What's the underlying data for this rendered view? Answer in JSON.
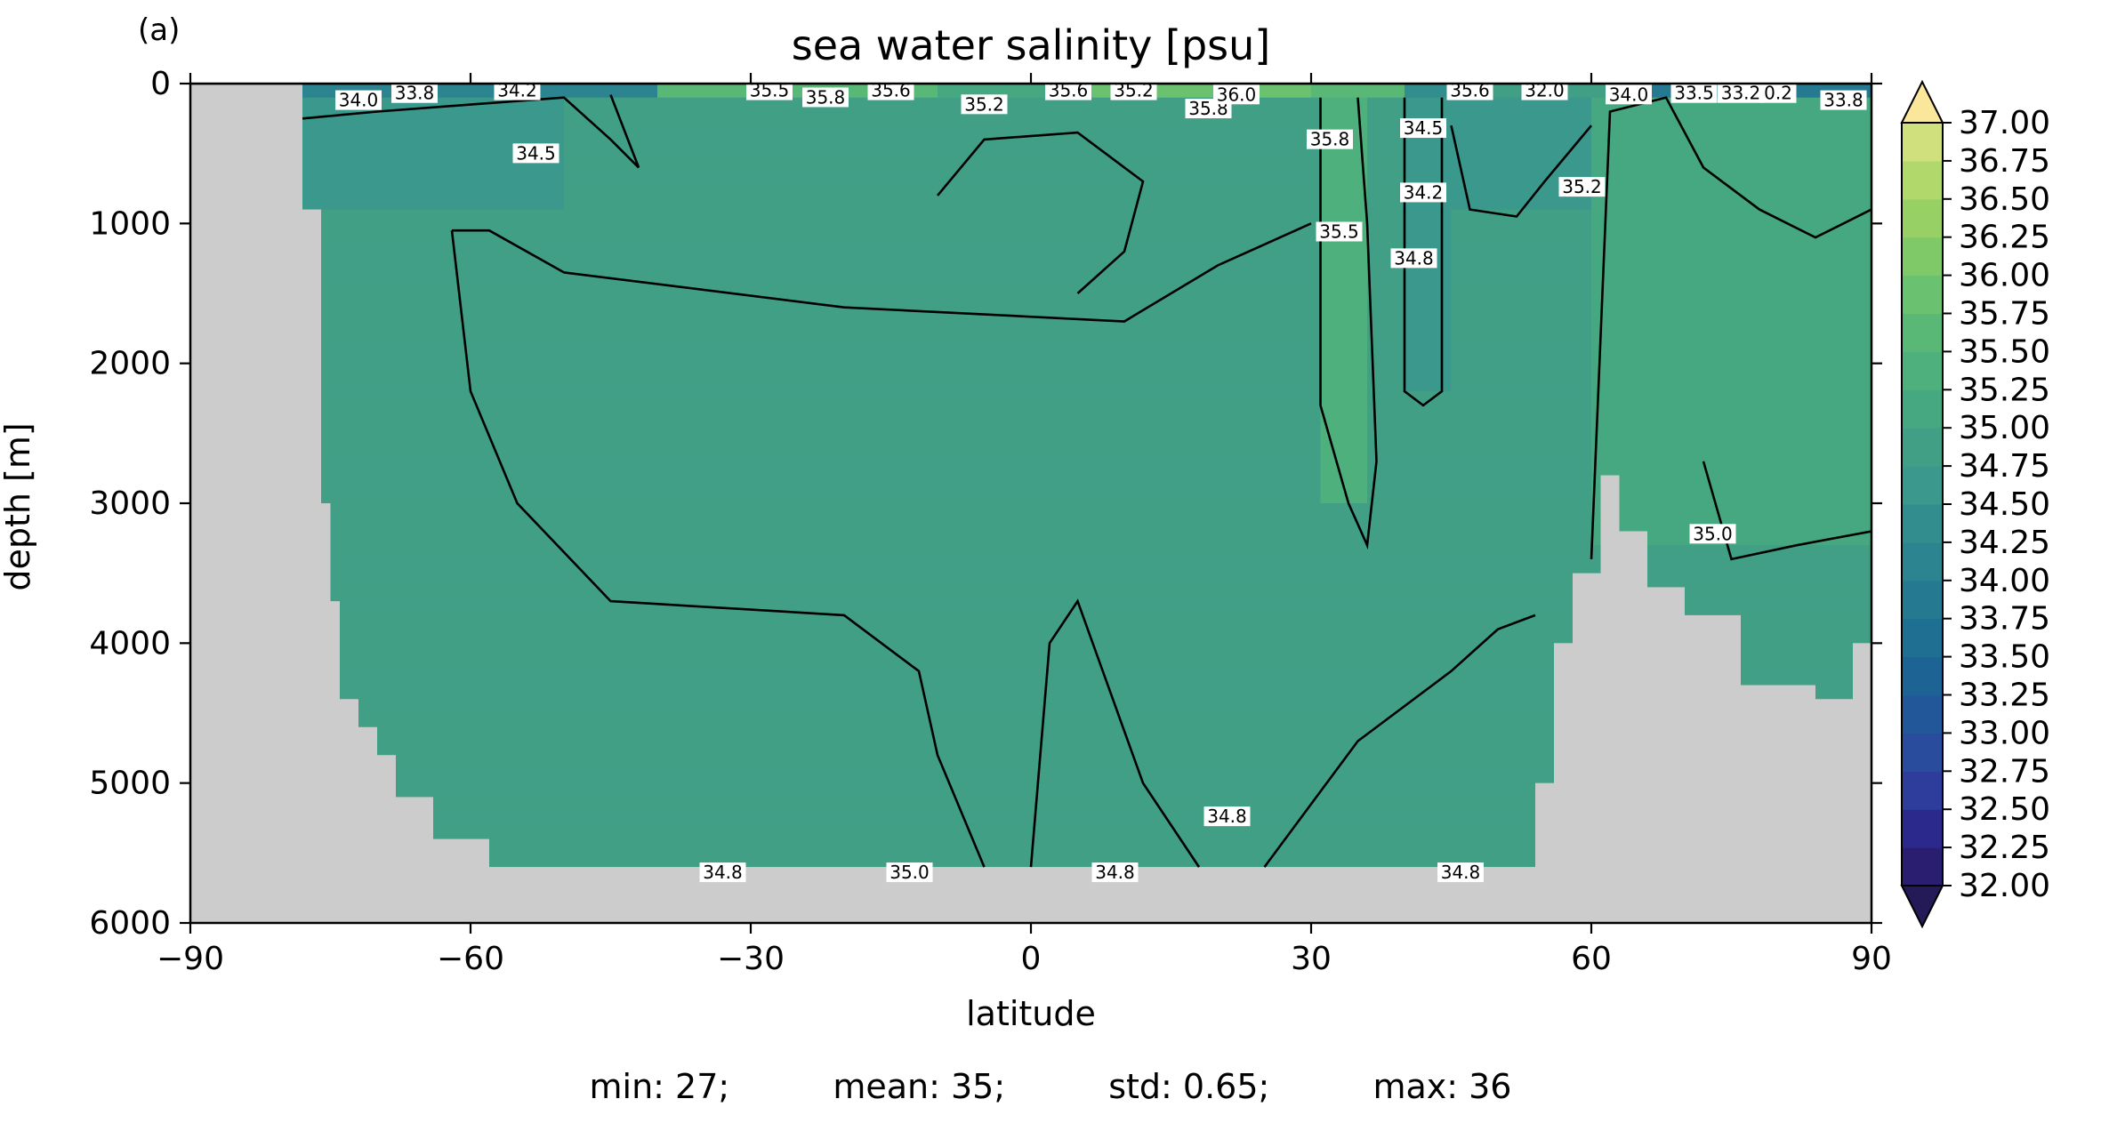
{
  "panel_label": "(a)",
  "stats": {
    "min": "min: 27;",
    "mean": "mean: 35;",
    "std": "std: 0.65;",
    "max": "max: 36"
  },
  "chart_data": {
    "type": "heatmap",
    "subtype": "filled-contour-depth-section",
    "title": "sea water salinity [psu]",
    "xlabel": "latitude",
    "ylabel": "depth [m]",
    "xlim": [
      -90,
      90
    ],
    "ylim": [
      6000,
      0
    ],
    "x_ticks": [
      -90,
      -60,
      -30,
      0,
      30,
      60,
      90
    ],
    "x_tick_labels": [
      "−90",
      "−60",
      "−30",
      "0",
      "30",
      "60",
      "90"
    ],
    "y_ticks": [
      0,
      1000,
      2000,
      3000,
      4000,
      5000,
      6000
    ],
    "y_tick_labels": [
      "0",
      "1000",
      "2000",
      "3000",
      "4000",
      "5000",
      "6000"
    ],
    "colorbar": {
      "levels": [
        32.0,
        32.25,
        32.5,
        32.75,
        33.0,
        33.25,
        33.5,
        33.75,
        34.0,
        34.25,
        34.5,
        34.75,
        35.0,
        35.25,
        35.5,
        35.75,
        36.0,
        36.25,
        36.5,
        36.75,
        37.0
      ],
      "tick_labels": [
        "32.00",
        "32.25",
        "32.50",
        "32.75",
        "33.00",
        "33.25",
        "33.50",
        "33.75",
        "34.00",
        "34.25",
        "34.50",
        "34.75",
        "35.00",
        "35.25",
        "35.50",
        "35.75",
        "36.00",
        "36.25",
        "36.50",
        "36.75",
        "37.00"
      ],
      "extend": "both",
      "colors": [
        "#2a1e70",
        "#2b2a8c",
        "#2e3c9c",
        "#2a4c9c",
        "#22589a",
        "#1d6494",
        "#1f6f92",
        "#257990",
        "#2c8490",
        "#328e8e",
        "#3a988c",
        "#419f86",
        "#46a880",
        "#4eb07c",
        "#5ab876",
        "#6ac270",
        "#80c968",
        "#97d064",
        "#b1d86a",
        "#cfe07c",
        "#ece58c"
      ],
      "under_color": "#241a58",
      "over_color": "#fbe79c"
    },
    "land_mask_color": "#cccccc",
    "deep_ocean_floor_m": 5600,
    "contour_labels": [
      {
        "text": "34.0",
        "lat": -72,
        "depth": 80
      },
      {
        "text": "33.8",
        "lat": -66,
        "depth": 30
      },
      {
        "text": "34.2",
        "lat": -55,
        "depth": 10
      },
      {
        "text": "34.5",
        "lat": -53,
        "depth": 460
      },
      {
        "text": "35.5",
        "lat": -28,
        "depth": 10
      },
      {
        "text": "35.8",
        "lat": -22,
        "depth": 60
      },
      {
        "text": "35.6",
        "lat": -15,
        "depth": 10
      },
      {
        "text": "35.2",
        "lat": -5,
        "depth": 110
      },
      {
        "text": "35.6",
        "lat": 4,
        "depth": 10
      },
      {
        "text": "35.2",
        "lat": 11,
        "depth": 10
      },
      {
        "text": "35.8",
        "lat": 19,
        "depth": 140
      },
      {
        "text": "36.0",
        "lat": 22,
        "depth": 40
      },
      {
        "text": "35.8",
        "lat": 32,
        "depth": 360
      },
      {
        "text": "35.5",
        "lat": 33,
        "depth": 1020
      },
      {
        "text": "34.5",
        "lat": 42,
        "depth": 280
      },
      {
        "text": "34.2",
        "lat": 42,
        "depth": 740
      },
      {
        "text": "34.8",
        "lat": 41,
        "depth": 1210
      },
      {
        "text": "35.6",
        "lat": 47,
        "depth": 10
      },
      {
        "text": "32.0",
        "lat": 55,
        "depth": 10
      },
      {
        "text": "35.2",
        "lat": 59,
        "depth": 700
      },
      {
        "text": "34.0",
        "lat": 64,
        "depth": 40
      },
      {
        "text": "33.5",
        "lat": 71,
        "depth": 30
      },
      {
        "text": "33.2",
        "lat": 76,
        "depth": 30
      },
      {
        "text": "0.2",
        "lat": 80,
        "depth": 30
      },
      {
        "text": "33.8",
        "lat": 87,
        "depth": 80
      },
      {
        "text": "35.0",
        "lat": 73,
        "depth": 3180
      },
      {
        "text": "34.8",
        "lat": 21,
        "depth": 5200
      },
      {
        "text": "34.8",
        "lat": -33,
        "depth": 5600
      },
      {
        "text": "35.0",
        "lat": -13,
        "depth": 5600
      },
      {
        "text": "34.8",
        "lat": 9,
        "depth": 5600
      },
      {
        "text": "34.8",
        "lat": 46,
        "depth": 5600
      }
    ]
  }
}
